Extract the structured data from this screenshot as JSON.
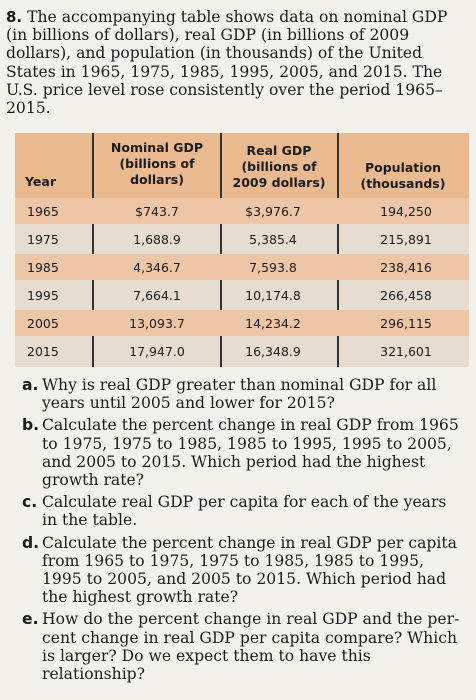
{
  "problem": {
    "number": "8.",
    "text": "The accompanying table shows data on nominal GDP (in billions of dollars), real GDP (in billions of 2009 dollars), and population (in thousands) of the United States in 1965, 1975, 1985, 1995, 2005, and 2015. The U.S. price level rose consistently over the period 1965–2015."
  },
  "table": {
    "headers": {
      "year": "Year",
      "nominal": [
        "Nominal GDP",
        "(billions of",
        "dollars)"
      ],
      "real": [
        "Real GDP",
        "(billions of",
        "2009 dollars)"
      ],
      "population": [
        "Population",
        "(thousands)"
      ]
    },
    "rows": [
      {
        "year": "1965",
        "nominal": "$743.7",
        "real": "$3,976.7",
        "population": "194,250"
      },
      {
        "year": "1975",
        "nominal": "1,688.9",
        "real": "5,385.4",
        "population": "215,891"
      },
      {
        "year": "1985",
        "nominal": "4,346.7",
        "real": "7,593.8",
        "population": "238,416"
      },
      {
        "year": "1995",
        "nominal": "7,664.1",
        "real": "10,174.8",
        "population": "266,458"
      },
      {
        "year": "2005",
        "nominal": "13,093.7",
        "real": "14,234.2",
        "population": "296,115"
      },
      {
        "year": "2015",
        "nominal": "17,947.0",
        "real": "16,348.9",
        "population": "321,601"
      }
    ]
  },
  "questions": [
    {
      "label": "a.",
      "text": "Why is real GDP greater than nominal GDP for all years until 2005 and lower for 2015?"
    },
    {
      "label": "b.",
      "text": "Calculate the percent change in real GDP from 1965 to 1975, 1975 to 1985, 1985 to 1995, 1995 to 2005, and 2005 to 2015. Which period had the highest growth rate?"
    },
    {
      "label": "c.",
      "text": "Calculate real GDP per capita for each of the years in the table."
    },
    {
      "label": "d.",
      "text": "Calculate the percent change in real GDP per capita from 1965 to 1975, 1975 to 1985, 1985 to 1995, 1995 to 2005, and 2005 to 2015. Which period had the highest growth rate?"
    },
    {
      "label": "e.",
      "text": "How do the percent change in real GDP and the per-cent change in real GDP per capita compare? Which is larger? Do we expect them to have this relationship?"
    }
  ],
  "colors": {
    "header_fill": "#e9b98f",
    "row_shade": "#ecc6a6",
    "row_plain": "#e6ddd0",
    "page": "#f3f1ec"
  }
}
